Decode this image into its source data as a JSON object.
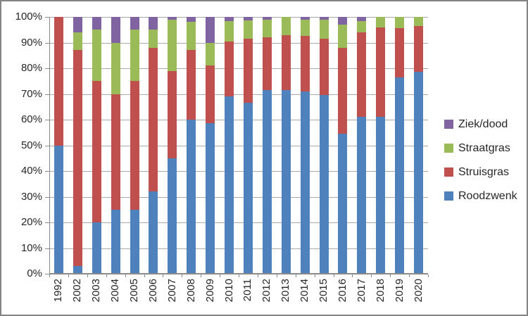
{
  "chart_data": {
    "type": "bar",
    "variant": "100%-stacked-column",
    "title": "",
    "xlabel": "",
    "ylabel": "",
    "grid": true,
    "categories": [
      "1992",
      "2002",
      "2003",
      "2004",
      "2005",
      "2006",
      "2007",
      "2008",
      "2009",
      "2010",
      "2011",
      "2012",
      "2013",
      "2014",
      "2015",
      "2016",
      "2017",
      "2018",
      "2019",
      "2020"
    ],
    "series": [
      {
        "name": "Roodzwenk",
        "color": "#4F81BD",
        "values": [
          50,
          3,
          20,
          25,
          25,
          32,
          45,
          60,
          58.5,
          69,
          66.5,
          71.5,
          71.5,
          71,
          69.5,
          54.5,
          61,
          61,
          76.5,
          78.5
        ]
      },
      {
        "name": "Struisgras",
        "color": "#C0504D",
        "values": [
          50,
          84,
          55,
          45,
          50,
          56,
          34,
          27,
          22.5,
          21.5,
          25,
          20.5,
          21.5,
          21.5,
          22,
          33.5,
          33,
          35,
          19,
          18
        ]
      },
      {
        "name": "Straatgras",
        "color": "#9BBB59",
        "values": [
          0,
          7,
          20,
          20,
          20,
          7,
          20,
          11,
          9,
          8,
          7,
          7,
          7,
          6.5,
          7.5,
          9,
          4.5,
          4,
          4.5,
          3.5
        ]
      },
      {
        "name": "Ziek/dood",
        "color": "#8064A2",
        "values": [
          0,
          6,
          5,
          10,
          5,
          5,
          1,
          2,
          10,
          1.5,
          1.5,
          1,
          0,
          1,
          1,
          3,
          1.5,
          0,
          0,
          0
        ]
      }
    ],
    "y_axis": {
      "min": 0,
      "max": 100,
      "ticks": [
        "0%",
        "10%",
        "20%",
        "30%",
        "40%",
        "50%",
        "60%",
        "70%",
        "80%",
        "90%",
        "100%"
      ]
    },
    "legend": {
      "position": "right",
      "entries": [
        {
          "label": "Ziek/dood",
          "color": "#8064A2"
        },
        {
          "label": "Straatgras",
          "color": "#9BBB59"
        },
        {
          "label": "Struisgras",
          "color": "#C0504D"
        },
        {
          "label": "Roodzwenk",
          "color": "#4F81BD"
        }
      ]
    }
  },
  "frame": {
    "border_color": "#848484",
    "background": "#FFFFFF",
    "gridline_color": "#A8A8A8",
    "axis_color": "#8A8A8A",
    "text_color": "#262626"
  }
}
